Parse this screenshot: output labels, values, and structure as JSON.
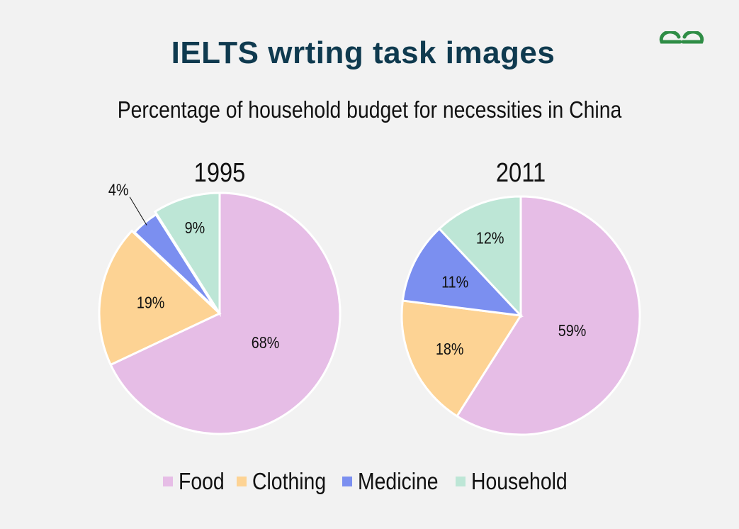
{
  "header": {
    "title": "IELTS wrting task images",
    "logo_text": "GG"
  },
  "colors": {
    "Food": "#e6bde6",
    "Clothing": "#fdd394",
    "Medicine": "#7b8ff0",
    "Household": "#bde6d6",
    "title": "#0f3a4f",
    "logo": "#2f8d46"
  },
  "chart_data": {
    "type": "pie",
    "title": "Percentage of household budget for necessities in China",
    "legend_position": "bottom",
    "categories": [
      "Food",
      "Clothing",
      "Medicine",
      "Household"
    ],
    "pies": [
      {
        "name": "1995",
        "values": [
          68,
          19,
          4,
          9
        ],
        "labels": [
          "68%",
          "19%",
          "4%",
          "9%"
        ]
      },
      {
        "name": "2011",
        "values": [
          59,
          18,
          11,
          12
        ],
        "labels": [
          "59%",
          "18%",
          "11%",
          "12%"
        ]
      }
    ]
  }
}
